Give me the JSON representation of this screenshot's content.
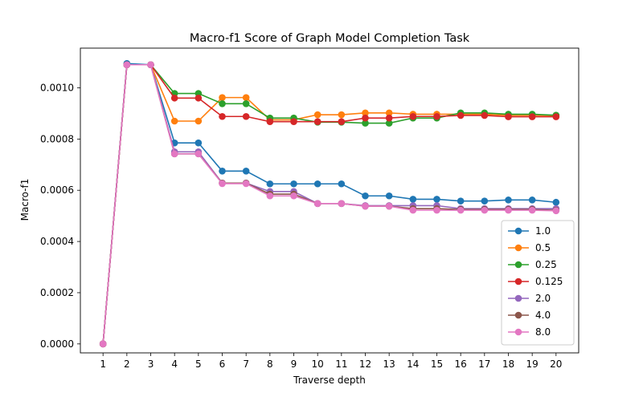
{
  "chart_data": {
    "type": "line",
    "title": "Macro-f1 Score of Graph Model Completion Task",
    "xlabel": "Traverse depth",
    "ylabel": "Macro-f1",
    "x": [
      1,
      2,
      3,
      4,
      5,
      6,
      7,
      8,
      9,
      10,
      11,
      12,
      13,
      14,
      15,
      16,
      17,
      18,
      19,
      20
    ],
    "ylim": [
      -3.5e-05,
      0.001155
    ],
    "yticks": [
      "0.0000",
      "0.0002",
      "0.0004",
      "0.0006",
      "0.0008",
      "0.0010"
    ],
    "ytick_values": [
      0,
      0.0002,
      0.0004,
      0.0006,
      0.0008,
      0.001
    ],
    "legend_position": "lower-right",
    "series": [
      {
        "name": "1.0",
        "color": "#1f77b4",
        "values": [
          0,
          0.001095,
          0.00109,
          0.000785,
          0.000785,
          0.000675,
          0.000675,
          0.000625,
          0.000625,
          0.000625,
          0.000625,
          0.000578,
          0.000578,
          0.000565,
          0.000565,
          0.000558,
          0.000558,
          0.000562,
          0.000562,
          0.000553
        ]
      },
      {
        "name": "0.5",
        "color": "#ff7f0e",
        "values": [
          0,
          0.00109,
          0.00109,
          0.00087,
          0.00087,
          0.000962,
          0.000962,
          0.000875,
          0.000875,
          0.000895,
          0.000895,
          0.000902,
          0.000902,
          0.000897,
          0.000897,
          0.000897,
          0.000897,
          0.000893,
          0.000893,
          0.000891
        ]
      },
      {
        "name": "0.25",
        "color": "#2ca02c",
        "values": [
          0,
          0.00109,
          0.00109,
          0.000978,
          0.000978,
          0.000938,
          0.000938,
          0.000882,
          0.000882,
          0.000866,
          0.000866,
          0.000862,
          0.000862,
          0.000882,
          0.000882,
          0.000902,
          0.000902,
          0.000897,
          0.000897,
          0.000893
        ]
      },
      {
        "name": "0.125",
        "color": "#d62728",
        "values": [
          0,
          0.00109,
          0.00109,
          0.00096,
          0.00096,
          0.000888,
          0.000888,
          0.000868,
          0.000868,
          0.000868,
          0.000868,
          0.000882,
          0.000882,
          0.000888,
          0.000888,
          0.000892,
          0.000892,
          0.000887,
          0.000887,
          0.000887
        ]
      },
      {
        "name": "2.0",
        "color": "#9467bd",
        "values": [
          0,
          0.00109,
          0.00109,
          0.00075,
          0.00075,
          0.000628,
          0.000628,
          0.000595,
          0.000595,
          0.000548,
          0.000548,
          0.00054,
          0.00054,
          0.00054,
          0.00054,
          0.000528,
          0.000528,
          0.000528,
          0.000528,
          0.000528
        ]
      },
      {
        "name": "4.0",
        "color": "#8c564b",
        "values": [
          0,
          0.00109,
          0.00109,
          0.000742,
          0.000742,
          0.000628,
          0.000628,
          0.000585,
          0.000585,
          0.000548,
          0.000548,
          0.000538,
          0.000538,
          0.000528,
          0.000528,
          0.000525,
          0.000525,
          0.000525,
          0.000525,
          0.000522
        ]
      },
      {
        "name": "8.0",
        "color": "#e377c2",
        "values": [
          0,
          0.00109,
          0.00109,
          0.000742,
          0.000742,
          0.000626,
          0.000626,
          0.000578,
          0.000578,
          0.000548,
          0.000548,
          0.000538,
          0.000538,
          0.000522,
          0.000522,
          0.000522,
          0.000522,
          0.000522,
          0.000522,
          0.00052
        ]
      }
    ]
  }
}
